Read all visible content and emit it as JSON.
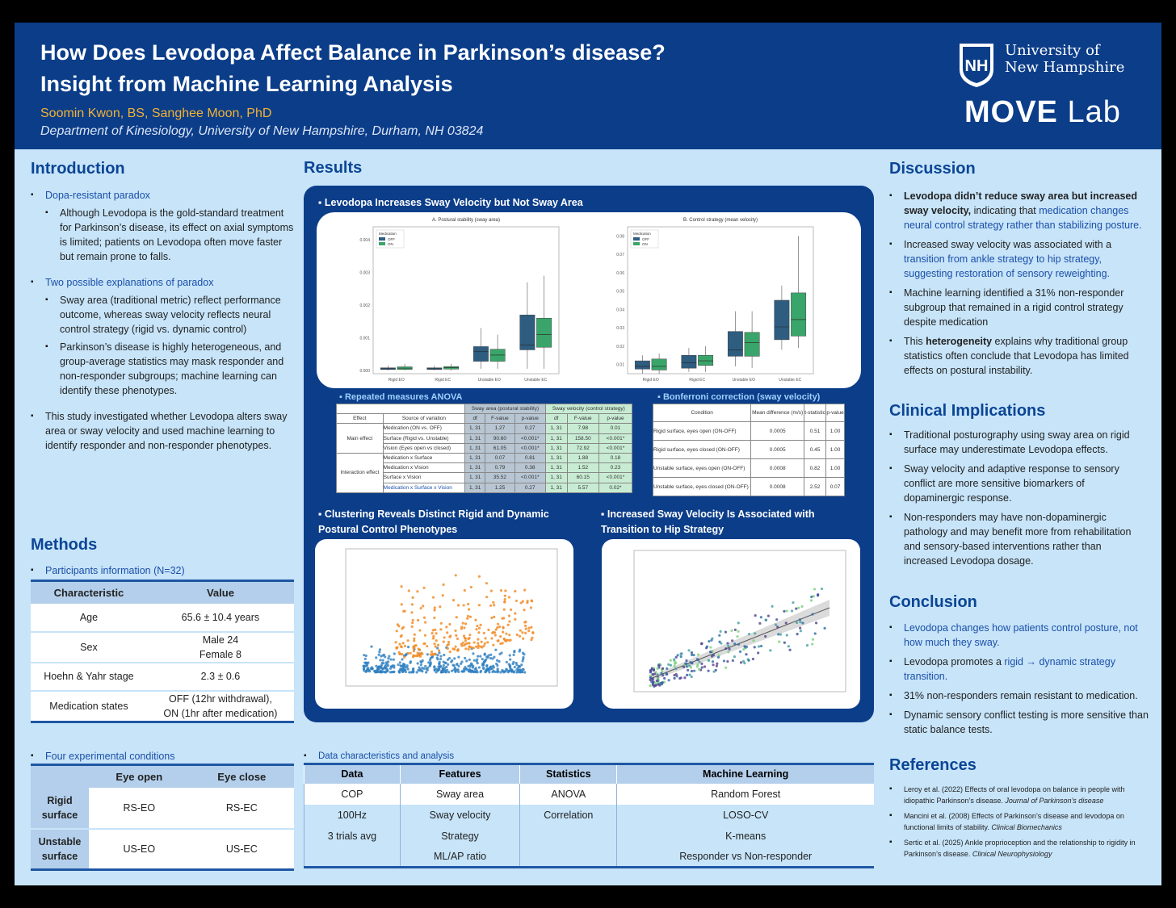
{
  "header": {
    "title_line1": "How Does Levodopa Affect Balance in Parkinson’s disease?",
    "title_line2": "Insight from Machine Learning Analysis",
    "authors": "Soomin Kwon, BS,  Sanghee Moon, PhD",
    "department": "Department of Kinesiology, University of New Hampshire, Durham, NH 03824",
    "university_line1": "University of",
    "university_line2": "New Hampshire",
    "shield_text": "NH",
    "lab_bold": "MOVE",
    "lab_light": "Lab"
  },
  "introduction": {
    "heading": "Introduction",
    "b1": "Dopa-resistant paradox",
    "b1a": "Although Levodopa is the gold-standard treatment for Parkinson’s disease, its effect on axial symptoms is limited; patients on Levodopa often move faster but remain prone to falls.",
    "b2": "Two possible explanations of paradox",
    "b2a": "Sway area (traditional metric) reflect performance outcome, whereas sway velocity reflects neural control strategy (rigid vs. dynamic control)",
    "b2b": "Parkinson’s disease is highly heterogeneous, and group-average statistics may mask responder and non-responder subgroups; machine learning can identify these phenotypes.",
    "b3": "This study investigated whether Levodopa alters sway area or sway velocity and used machine learning to identify responder and non-responder phenotypes."
  },
  "methods": {
    "heading": "Methods",
    "participants_label": "Participants information (N=32)",
    "participants_headers": [
      "Characteristic",
      "Value"
    ],
    "participants_rows": [
      [
        "Age",
        "65.6 ± 10.4 years"
      ],
      [
        "Sex",
        "Male 24\nFemale 8"
      ],
      [
        "Hoehn & Yahr stage",
        "2.3 ±  0.6"
      ],
      [
        "Medication states",
        "OFF (12hr withdrawal),\nON (1hr after medication)"
      ]
    ],
    "conditions_label": "Four experimental conditions",
    "conditions_headers": [
      "",
      "Eye open",
      "Eye close"
    ],
    "conditions_rows": [
      [
        "Rigid surface",
        "RS-EO",
        "RS-EC"
      ],
      [
        "Unstable surface",
        "US-EO",
        "US-EC"
      ]
    ]
  },
  "results": {
    "heading": "Results",
    "sub1": "Levodopa Increases Sway Velocity but Not Sway Area",
    "anova_label": "Repeated measures ANOVA",
    "bonf_label": "Bonferroni correction (sway velocity)",
    "sub2": "Clustering Reveals Distinct Rigid and Dynamic Postural Control Phenotypes",
    "sub3": "Increased Sway Velocity Is Associated with Transition to Hip Strategy",
    "anova": {
      "group_headers": [
        "Sway area (postural stability)",
        "Sway velocity (control strategy)"
      ],
      "headers": [
        "Effect",
        "Source of variation",
        "df",
        "F-value",
        "p-value",
        "df",
        "F-value",
        "p-value"
      ],
      "groups": [
        "Main effect",
        "Interaction effect"
      ],
      "rows": [
        [
          "Medication (ON vs. OFF)",
          "1, 31",
          "1.27",
          "0.27",
          "1, 31",
          "7.98",
          "0.01"
        ],
        [
          "Surface (Rigid vs. Unstable)",
          "1, 31",
          "90.60",
          "<0.001*",
          "1, 31",
          "158.50",
          "<0.001*"
        ],
        [
          "Vision (Eyes open vs closed)",
          "1, 31",
          "61.05",
          "<0.001*",
          "1, 31",
          "72.92",
          "<0.001*"
        ],
        [
          "Medication x Surface",
          "1, 31",
          "0.07",
          "0.81",
          "1, 31",
          "1.88",
          "0.18"
        ],
        [
          "Medication x Vision",
          "1, 31",
          "0.79",
          "0.38",
          "1, 31",
          "1.52",
          "0.23"
        ],
        [
          "Surface x Vision",
          "1, 31",
          "35.52",
          "<0.001*",
          "1, 31",
          "60.15",
          "<0.001*"
        ],
        [
          "Medication x Surface x Vision",
          "1, 31",
          "1.25",
          "0.27",
          "1, 31",
          "5.57",
          "0.02*"
        ]
      ]
    },
    "bonferroni": {
      "headers": [
        "Condition",
        "Mean difference (m/s)",
        "t-statistic",
        "p-value"
      ],
      "rows": [
        [
          "Rigid surface, eyes open (ON-OFF)",
          "0.0005",
          "0.51",
          "1.00"
        ],
        [
          "Rigid surface, eyes closed (ON-OFF)",
          "0.0005",
          "0.45",
          "1.00"
        ],
        [
          "Unstable surface, eyes open (ON-OFF)",
          "0.0008",
          "0.82",
          "1.00"
        ],
        [
          "Unstable surface, eyes closed (ON-OFF)",
          "0.0008",
          "2.52",
          "0.07"
        ]
      ]
    }
  },
  "data_table": {
    "label": "Data characteristics and analysis",
    "headers": [
      "Data",
      "Features",
      "Statistics",
      "Machine Learning"
    ],
    "rows": [
      [
        "COP",
        "Sway area",
        "ANOVA",
        "Random Forest"
      ],
      [
        "100Hz",
        "Sway velocity",
        "Correlation",
        "LOSO-CV"
      ],
      [
        "3 trials avg",
        "Strategy",
        "",
        "K-means"
      ],
      [
        "",
        "ML/AP ratio",
        "",
        "Responder vs Non-responder"
      ]
    ]
  },
  "discussion": {
    "heading": "Discussion",
    "items": [
      {
        "bold": "Levodopa didn’t reduce sway area but increased sway velocity,",
        "plain": " indicating that ",
        "blue": "medication changes neural control strategy rather than stabilizing posture."
      },
      {
        "plain": "Increased sway velocity was associated with a ",
        "blue": "transition from ankle strategy to hip strategy, suggesting restoration of sensory reweighting."
      },
      {
        "plain": "Machine learning identified a 31% non-responder subgroup that remained in a rigid control strategy despite medication"
      },
      {
        "pre": "This ",
        "bold": "heterogeneity",
        "plain": " explains why traditional group statistics often conclude that Levodopa has limited effects on postural instability."
      }
    ]
  },
  "clinical": {
    "heading": "Clinical Implications",
    "items": [
      "Traditional posturography using sway area on rigid surface may underestimate Levodopa effects.",
      "Sway velocity and adaptive response to sensory conflict are more sensitive biomarkers of dopaminergic response.",
      "Non-responders may have non-dopaminergic pathology and may benefit more from rehabilitation and sensory-based interventions rather than increased Levodopa dosage."
    ]
  },
  "conclusion": {
    "heading": "Conclusion",
    "c1": "Levodopa changes how patients control posture, not how much they sway.",
    "c2_pre": "Levodopa promotes a ",
    "c2_blue": "rigid → dynamic strategy transition.",
    "c3": "31% non-responders remain resistant to medication.",
    "c4": "Dynamic sensory conflict testing is more sensitive than static balance tests."
  },
  "references": {
    "heading": "References",
    "items": [
      {
        "text": "Leroy et al. (2022) Effects of oral levodopa on balance in people with idiopathic Parkinson’s disease. ",
        "journal": "Journal of Parkinson’s disease"
      },
      {
        "text": "Mancini et al. (2008) Effects of Parkinson’s disease and levodopa on functional limits of stability. ",
        "journal": "Clinical Biomechanics"
      },
      {
        "text": "Sertic et al. (2025) Ankle proprioception and the relationship to rigidity in Parkinson’s disease. ",
        "journal": "Clinical Neurophysiology"
      }
    ]
  },
  "colors": {
    "header": "#0b3d89",
    "background": "#c7e4f9",
    "accent": "#f2b233",
    "off": "#2e5d80",
    "on": "#3aa56a",
    "cluster_rigid": "#2f7fc1",
    "cluster_dynamic": "#f28e2b"
  },
  "chart_data": [
    {
      "type": "box",
      "title": "A. Postural stability (sway area)",
      "legend_title": "Medication",
      "series": [
        {
          "name": "OFF"
        },
        {
          "name": "ON"
        }
      ],
      "categories": [
        "Rigid EO",
        "Rigid EC",
        "Unstable EO",
        "Unstable EC"
      ],
      "yticks": [
        "0.000",
        "0.001",
        "0.002",
        "0.003",
        "0.004"
      ],
      "ylim": [
        -0.0001,
        0.0044
      ],
      "boxes": {
        "OFF": [
          [
            0.0,
            3e-05,
            5e-05,
            8e-05,
            0.00015
          ],
          [
            0.0,
            3e-05,
            5e-05,
            8e-05,
            0.00015
          ],
          [
            5e-05,
            0.00028,
            0.00058,
            0.00073,
            0.0013
          ],
          [
            5e-05,
            0.00063,
            0.00078,
            0.0017,
            0.0027
          ]
        ],
        "ON": [
          [
            0.0,
            3e-05,
            7e-05,
            0.00011,
            0.0002
          ],
          [
            0.0,
            4e-05,
            8e-05,
            0.00012,
            0.0002
          ],
          [
            5e-05,
            0.00028,
            0.00047,
            0.00065,
            0.0011
          ],
          [
            5e-05,
            0.00071,
            0.0011,
            0.0016,
            0.0029
          ]
        ]
      }
    },
    {
      "type": "box",
      "title": "B. Control strategy (mean velocity)",
      "legend_title": "Medication",
      "series": [
        {
          "name": "OFF"
        },
        {
          "name": "ON"
        }
      ],
      "categories": [
        "Rigid EO",
        "Rigid EC",
        "Unstable EO",
        "Unstable EC"
      ],
      "yticks": [
        "0.01",
        "0.02",
        "0.03",
        "0.04",
        "0.05",
        "0.06",
        "0.07",
        "0.08"
      ],
      "ylim": [
        0.005,
        0.085
      ],
      "boxes": {
        "OFF": [
          [
            0.005,
            0.0075,
            0.009,
            0.012,
            0.015
          ],
          [
            0.006,
            0.008,
            0.011,
            0.015,
            0.019
          ],
          [
            0.009,
            0.0145,
            0.018,
            0.028,
            0.039
          ],
          [
            0.018,
            0.0235,
            0.0305,
            0.045,
            0.053
          ]
        ],
        "ON": [
          [
            0.005,
            0.007,
            0.009,
            0.013,
            0.016
          ],
          [
            0.006,
            0.0095,
            0.012,
            0.015,
            0.02
          ],
          [
            0.008,
            0.0145,
            0.022,
            0.0275,
            0.039
          ],
          [
            0.019,
            0.0255,
            0.0345,
            0.049,
            0.08
          ]
        ]
      }
    }
  ]
}
